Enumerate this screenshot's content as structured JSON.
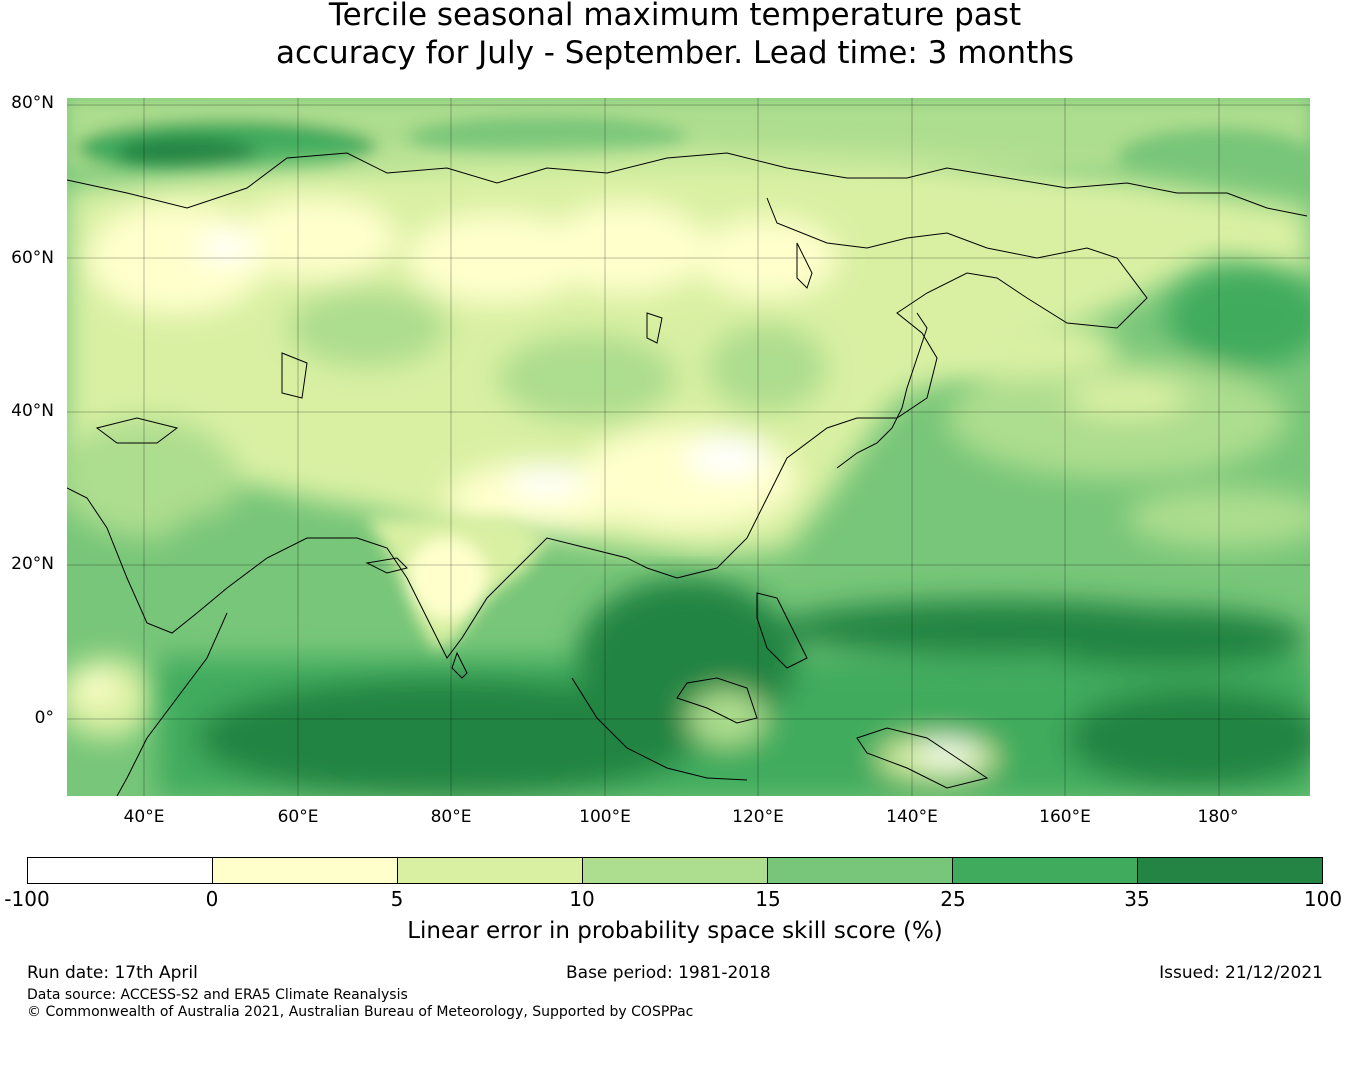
{
  "title": {
    "line1": "Tercile seasonal maximum temperature past",
    "line2": "accuracy for July - September. Lead time: 3 months"
  },
  "map": {
    "lat_labels": [
      "80°N",
      "60°N",
      "40°N",
      "20°N",
      "0°"
    ],
    "lon_labels": [
      "40°E",
      "60°E",
      "80°E",
      "100°E",
      "120°E",
      "140°E",
      "160°E",
      "180°"
    ],
    "lat_range": [
      -10,
      81
    ],
    "lon_range": [
      30,
      192
    ],
    "colors": {
      "white": "#ffffff",
      "pale_yellow": "#ffffcc",
      "light_green": "#d9f0a3",
      "green_10_15": "#addd8e",
      "green_15_25": "#78c679",
      "green_25_35": "#41ab5d",
      "green_35_100": "#238443",
      "coastline": "#000000"
    }
  },
  "colorbar": {
    "ticks": [
      "-100",
      "0",
      "5",
      "10",
      "15",
      "25",
      "35",
      "100"
    ],
    "colors": [
      "#ffffff",
      "#ffffcc",
      "#d9f0a3",
      "#addd8e",
      "#78c679",
      "#41ab5d",
      "#238443"
    ],
    "label": "Linear error in probability space skill score (%)"
  },
  "footer": {
    "run_date": "Run date: 17th April",
    "base_period": "Base period: 1981-2018",
    "issued": "Issued: 21/12/2021",
    "data_source": "Data source: ACCESS-S2 and ERA5 Climate Reanalysis",
    "copyright": "© Commonwealth of Australia 2021, Australian Bureau of Meteorology, Supported by COSPPac"
  }
}
